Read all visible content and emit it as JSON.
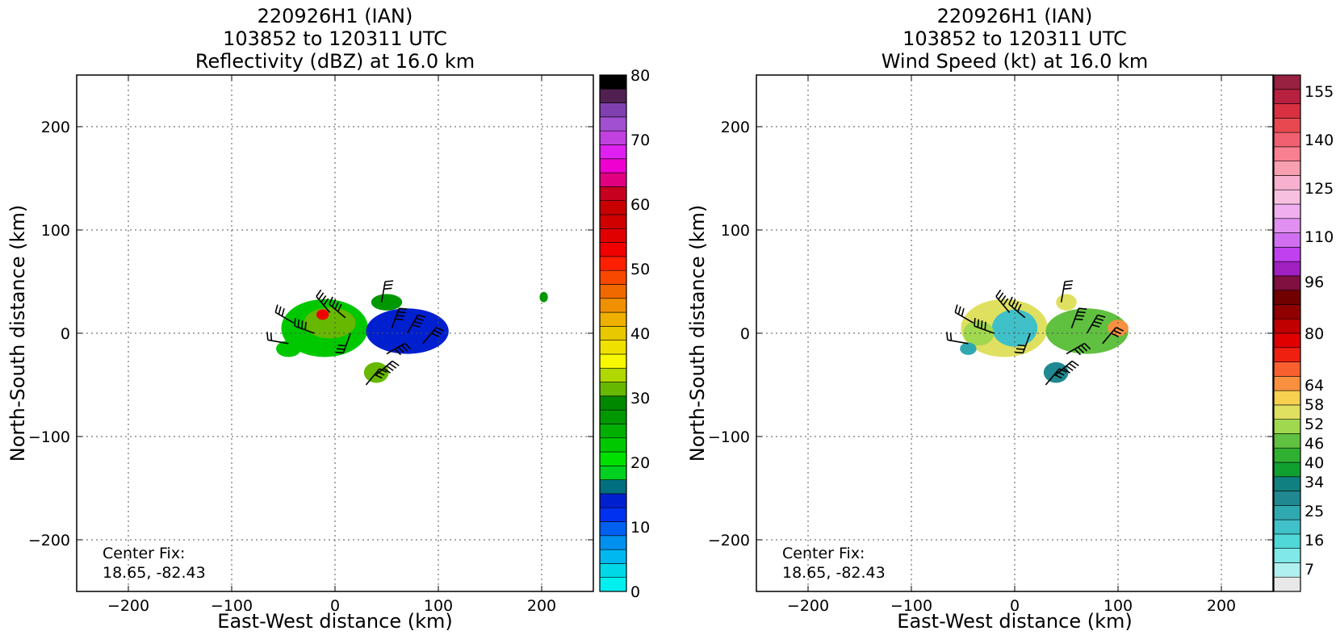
{
  "chart_data": [
    {
      "type": "heatmap",
      "title": [
        "220926H1 (IAN)",
        "103852 to 120311 UTC",
        "Reflectivity (dBZ) at 16.0 km"
      ],
      "xlabel": "East-West distance (km)",
      "ylabel": "North-South distance (km)",
      "xlim": [
        -250,
        250
      ],
      "ylim": [
        -250,
        250
      ],
      "xticks": [
        -200,
        -100,
        0,
        100,
        200
      ],
      "yticks": [
        -200,
        -100,
        0,
        100,
        200
      ],
      "grid": true,
      "annotation": [
        "Center Fix:",
        "18.65, -82.43"
      ],
      "colorbar": {
        "range": [
          0,
          80
        ],
        "tick_values": [
          0,
          10,
          20,
          30,
          40,
          50,
          60,
          70,
          80
        ],
        "tick_labels": [
          "0",
          "10",
          "20",
          "30",
          "40",
          "50",
          "60",
          "70",
          "80"
        ],
        "colors": [
          "#00f0f0",
          "#00d8e8",
          "#00b8f0",
          "#0090f0",
          "#0060f0",
          "#0030f0",
          "#0020d0",
          "#007080",
          "#00d020",
          "#00e000",
          "#00c800",
          "#00b000",
          "#009800",
          "#008800",
          "#66b800",
          "#b0d800",
          "#f8f800",
          "#f0e000",
          "#e8c800",
          "#f0b000",
          "#f09000",
          "#f06800",
          "#f84800",
          "#ff2000",
          "#f00000",
          "#e00000",
          "#d00000",
          "#c80000",
          "#c80020",
          "#e00080",
          "#f000d0",
          "#e020f0",
          "#c040e0",
          "#a050d0",
          "#8040b0",
          "#502050",
          "#000000"
        ]
      },
      "echoes": [
        {
          "name": "main-core",
          "center": [
            -10,
            5
          ],
          "radii": [
            42,
            28
          ],
          "level": 10
        },
        {
          "name": "inner-core",
          "center": [
            -5,
            10
          ],
          "radii": [
            25,
            15
          ],
          "level": 14
        },
        {
          "name": "east-band",
          "center": [
            70,
            2
          ],
          "radii": [
            40,
            22
          ],
          "level": 6
        },
        {
          "name": "south-cell",
          "center": [
            40,
            -38
          ],
          "radii": [
            12,
            10
          ],
          "level": 14
        },
        {
          "name": "west-cell",
          "center": [
            -45,
            -15
          ],
          "radii": [
            12,
            8
          ],
          "level": 10
        },
        {
          "name": "far-east-cell",
          "center": [
            202,
            35
          ],
          "radii": [
            4,
            5
          ],
          "level": 12
        },
        {
          "name": "north-strip",
          "center": [
            50,
            30
          ],
          "radii": [
            15,
            8
          ],
          "level": 12
        },
        {
          "name": "green-spot",
          "center": [
            -12,
            18
          ],
          "radii": [
            6,
            5
          ],
          "level": 24
        }
      ]
    },
    {
      "type": "heatmap",
      "title": [
        "220926H1 (IAN)",
        "103852 to 120311 UTC",
        "Wind Speed (kt) at 16.0 km"
      ],
      "xlabel": "East-West distance (km)",
      "ylabel": "North-South distance (km)",
      "xlim": [
        -250,
        250
      ],
      "ylim": [
        -250,
        250
      ],
      "xticks": [
        -200,
        -100,
        0,
        100,
        200
      ],
      "yticks": [
        -200,
        -100,
        0,
        100,
        200
      ],
      "grid": true,
      "annotation": [
        "Center Fix:",
        "18.65, -82.43"
      ],
      "colorbar": {
        "range": [
          0,
          160
        ],
        "tick_values": [
          7,
          16,
          25,
          34,
          40,
          46,
          52,
          58,
          64,
          80,
          96,
          110,
          125,
          140,
          155
        ],
        "tick_labels": [
          "7",
          "16",
          "25",
          "34",
          "40",
          "46",
          "52",
          "58",
          "64",
          "80",
          "96",
          "110",
          "125",
          "140",
          "155"
        ],
        "colors": [
          "#e8e8e8",
          "#b0f0f0",
          "#80e8e8",
          "#50d8d8",
          "#40c0c8",
          "#30a8b0",
          "#208890",
          "#108080",
          "#10a030",
          "#30b030",
          "#60c040",
          "#a0d850",
          "#e0e060",
          "#f8d050",
          "#f89040",
          "#f86030",
          "#f02010",
          "#e00000",
          "#c00000",
          "#900000",
          "#700000",
          "#801040",
          "#a020c0",
          "#c040f0",
          "#d070f0",
          "#e090f0",
          "#f0b0f0",
          "#f8c0e0",
          "#f8b0d0",
          "#f8a0b0",
          "#f88090",
          "#f06070",
          "#e84850",
          "#d83040",
          "#b82040",
          "#982040"
        ]
      },
      "echoes": [
        {
          "name": "main-core",
          "center": [
            -10,
            5
          ],
          "radii": [
            42,
            28
          ],
          "level": 12
        },
        {
          "name": "inner-core",
          "center": [
            0,
            5
          ],
          "radii": [
            22,
            18
          ],
          "level": 4
        },
        {
          "name": "west-yellow",
          "center": [
            -35,
            0
          ],
          "radii": [
            15,
            12
          ],
          "level": 11
        },
        {
          "name": "east-band",
          "center": [
            70,
            2
          ],
          "radii": [
            40,
            22
          ],
          "level": 10
        },
        {
          "name": "east-orange",
          "center": [
            100,
            5
          ],
          "radii": [
            10,
            8
          ],
          "level": 14
        },
        {
          "name": "south-cell",
          "center": [
            40,
            -38
          ],
          "radii": [
            12,
            10
          ],
          "level": 6
        },
        {
          "name": "west-cell",
          "center": [
            -45,
            -15
          ],
          "radii": [
            8,
            6
          ],
          "level": 5
        },
        {
          "name": "north-strip",
          "center": [
            50,
            30
          ],
          "radii": [
            10,
            8
          ],
          "level": 12
        }
      ]
    }
  ],
  "wind_barbs": [
    {
      "x": -40,
      "y": 10,
      "dir": 300,
      "barbs": 3
    },
    {
      "x": -20,
      "y": 0,
      "dir": 290,
      "barbs": 4
    },
    {
      "x": -5,
      "y": 20,
      "dir": 320,
      "barbs": 4
    },
    {
      "x": 10,
      "y": 15,
      "dir": 310,
      "barbs": 4
    },
    {
      "x": 15,
      "y": 0,
      "dir": 200,
      "barbs": 3
    },
    {
      "x": 45,
      "y": 30,
      "dir": 10,
      "barbs": 3
    },
    {
      "x": 55,
      "y": 5,
      "dir": 20,
      "barbs": 4
    },
    {
      "x": 70,
      "y": 0,
      "dir": 30,
      "barbs": 4
    },
    {
      "x": 85,
      "y": -10,
      "dir": 40,
      "barbs": 3
    },
    {
      "x": 50,
      "y": -20,
      "dir": 60,
      "barbs": 4
    },
    {
      "x": 40,
      "y": -40,
      "dir": 50,
      "barbs": 4
    },
    {
      "x": 30,
      "y": -50,
      "dir": 40,
      "barbs": 3
    },
    {
      "x": -45,
      "y": -10,
      "dir": 280,
      "barbs": 2
    }
  ]
}
